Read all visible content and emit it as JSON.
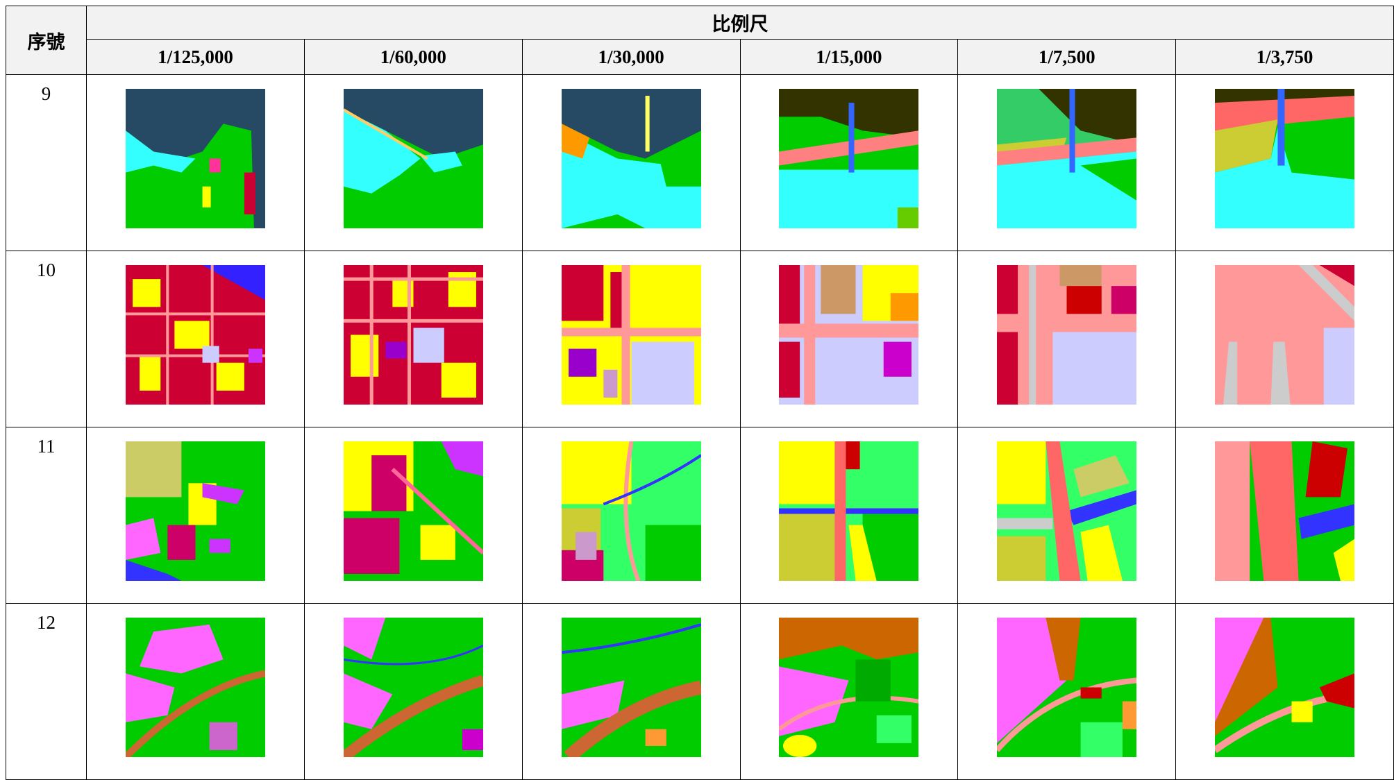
{
  "header": {
    "index": "序號",
    "scale": "比例尺",
    "scales": [
      "1/125,000",
      "1/60,000",
      "1/30,000",
      "1/15,000",
      "1/7,500",
      "1/3,750"
    ]
  },
  "rows": [
    {
      "index": 9
    },
    {
      "index": 10
    },
    {
      "index": 11
    },
    {
      "index": 12
    }
  ]
}
